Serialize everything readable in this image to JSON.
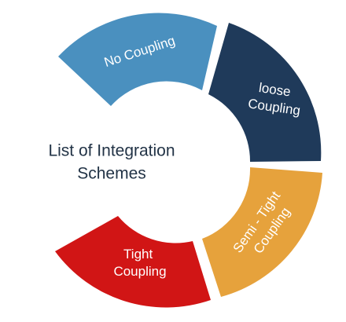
{
  "diagram": {
    "center": {
      "line1": "List of Integration",
      "line2": "Schemes"
    },
    "segments": [
      {
        "lines": [
          "No Coupling"
        ],
        "color": "#4A90BF"
      },
      {
        "lines": [
          "loose",
          "Coupling"
        ],
        "color": "#1F3A5A"
      },
      {
        "lines": [
          "Semi - Tight",
          "Coupling"
        ],
        "color": "#E6A23C"
      },
      {
        "lines": [
          "Tight",
          "Coupling"
        ],
        "color": "#D11515"
      }
    ]
  }
}
